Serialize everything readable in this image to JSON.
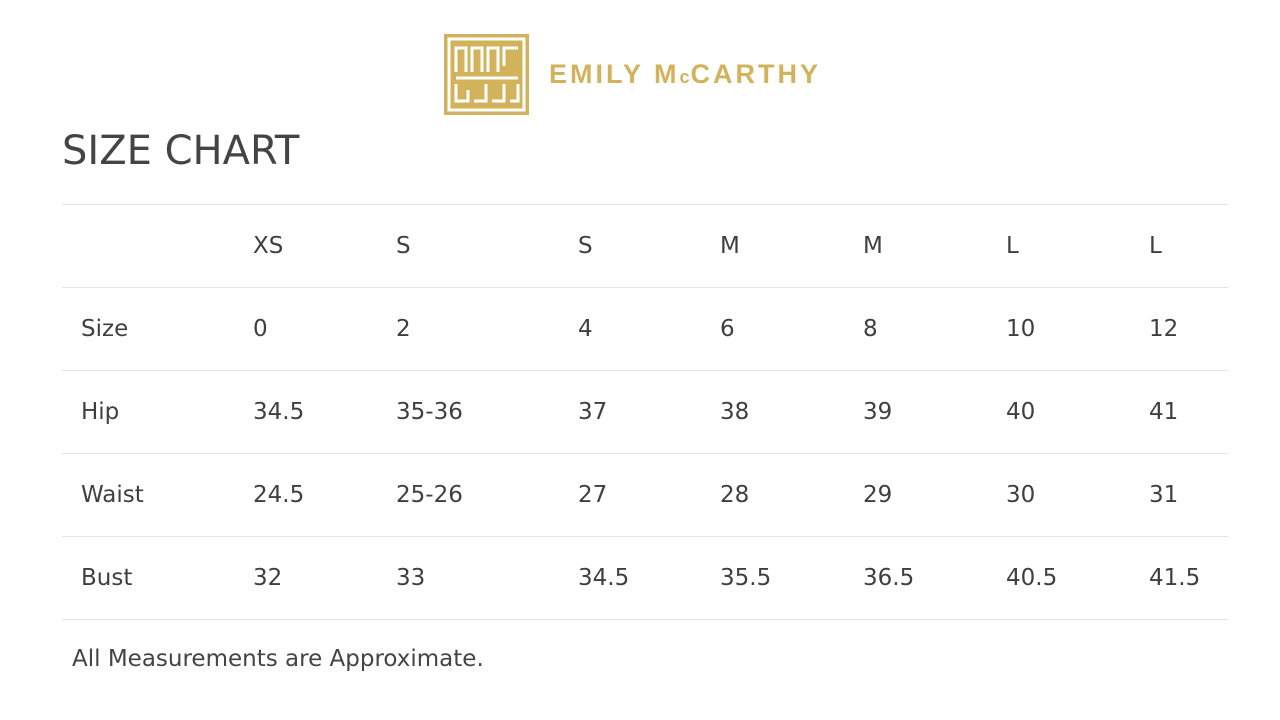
{
  "brand": {
    "name": "EMILY McCARTHY",
    "logo_color": "#d2b35c"
  },
  "title": "SIZE CHART",
  "table": {
    "header": [
      "",
      "XS",
      "S",
      "S",
      "M",
      "M",
      "L",
      "L"
    ],
    "rows": [
      [
        "Size",
        "0",
        "2",
        "4",
        "6",
        "8",
        "10",
        "12"
      ],
      [
        "Hip",
        "34.5",
        "35-36",
        "37",
        "38",
        "39",
        "40",
        "41"
      ],
      [
        "Waist",
        "24.5",
        "25-26",
        "27",
        "28",
        "29",
        "30",
        "31"
      ],
      [
        "Bust",
        "32",
        "33",
        "34.5",
        "35.5",
        "36.5",
        "40.5",
        "41.5"
      ]
    ]
  },
  "note": "All Measurements are Approximate."
}
